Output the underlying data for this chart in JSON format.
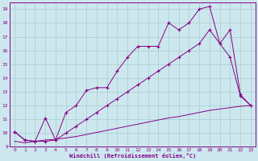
{
  "xlabel": "Windchill (Refroidissement éolien,°C)",
  "bg_color": "#cce8ee",
  "grid_color": "#aacccc",
  "line_color": "#880088",
  "xlim": [
    -0.5,
    23.5
  ],
  "ylim": [
    9,
    19.5
  ],
  "yticks": [
    9,
    10,
    11,
    12,
    13,
    14,
    15,
    16,
    17,
    18,
    19
  ],
  "xticks": [
    0,
    1,
    2,
    3,
    4,
    5,
    6,
    7,
    8,
    9,
    10,
    11,
    12,
    13,
    14,
    15,
    16,
    17,
    18,
    19,
    20,
    21,
    22,
    23
  ],
  "line1_x": [
    0,
    1,
    2,
    3,
    4,
    5,
    6,
    7,
    8,
    9,
    10,
    11,
    12,
    13,
    14,
    15,
    16,
    17,
    18,
    19,
    20,
    21,
    22,
    23
  ],
  "line1_y": [
    10.1,
    9.5,
    9.4,
    11.1,
    9.5,
    11.5,
    12.0,
    13.1,
    13.3,
    13.3,
    14.5,
    15.5,
    16.3,
    16.3,
    16.3,
    18.0,
    17.5,
    18.0,
    19.0,
    19.2,
    16.5,
    15.5,
    12.7,
    12.0
  ],
  "line2_x": [
    0,
    1,
    2,
    3,
    4,
    5,
    6,
    7,
    8,
    9,
    10,
    11,
    12,
    13,
    14,
    15,
    16,
    17,
    18,
    19,
    20,
    21,
    22,
    23
  ],
  "line2_y": [
    10.1,
    9.5,
    9.4,
    9.4,
    9.5,
    10.0,
    10.5,
    11.0,
    11.5,
    12.0,
    12.5,
    13.0,
    13.5,
    14.0,
    14.5,
    15.0,
    15.5,
    16.0,
    16.5,
    17.5,
    16.5,
    17.5,
    12.8,
    12.0
  ],
  "line3_x": [
    0,
    1,
    2,
    3,
    4,
    5,
    6,
    7,
    8,
    9,
    10,
    11,
    12,
    13,
    14,
    15,
    16,
    17,
    18,
    19,
    20,
    21,
    22,
    23
  ],
  "line3_y": [
    9.4,
    9.3,
    9.4,
    9.5,
    9.55,
    9.65,
    9.75,
    9.9,
    10.05,
    10.2,
    10.35,
    10.5,
    10.65,
    10.8,
    10.95,
    11.1,
    11.2,
    11.35,
    11.5,
    11.65,
    11.75,
    11.85,
    11.95,
    12.0
  ]
}
